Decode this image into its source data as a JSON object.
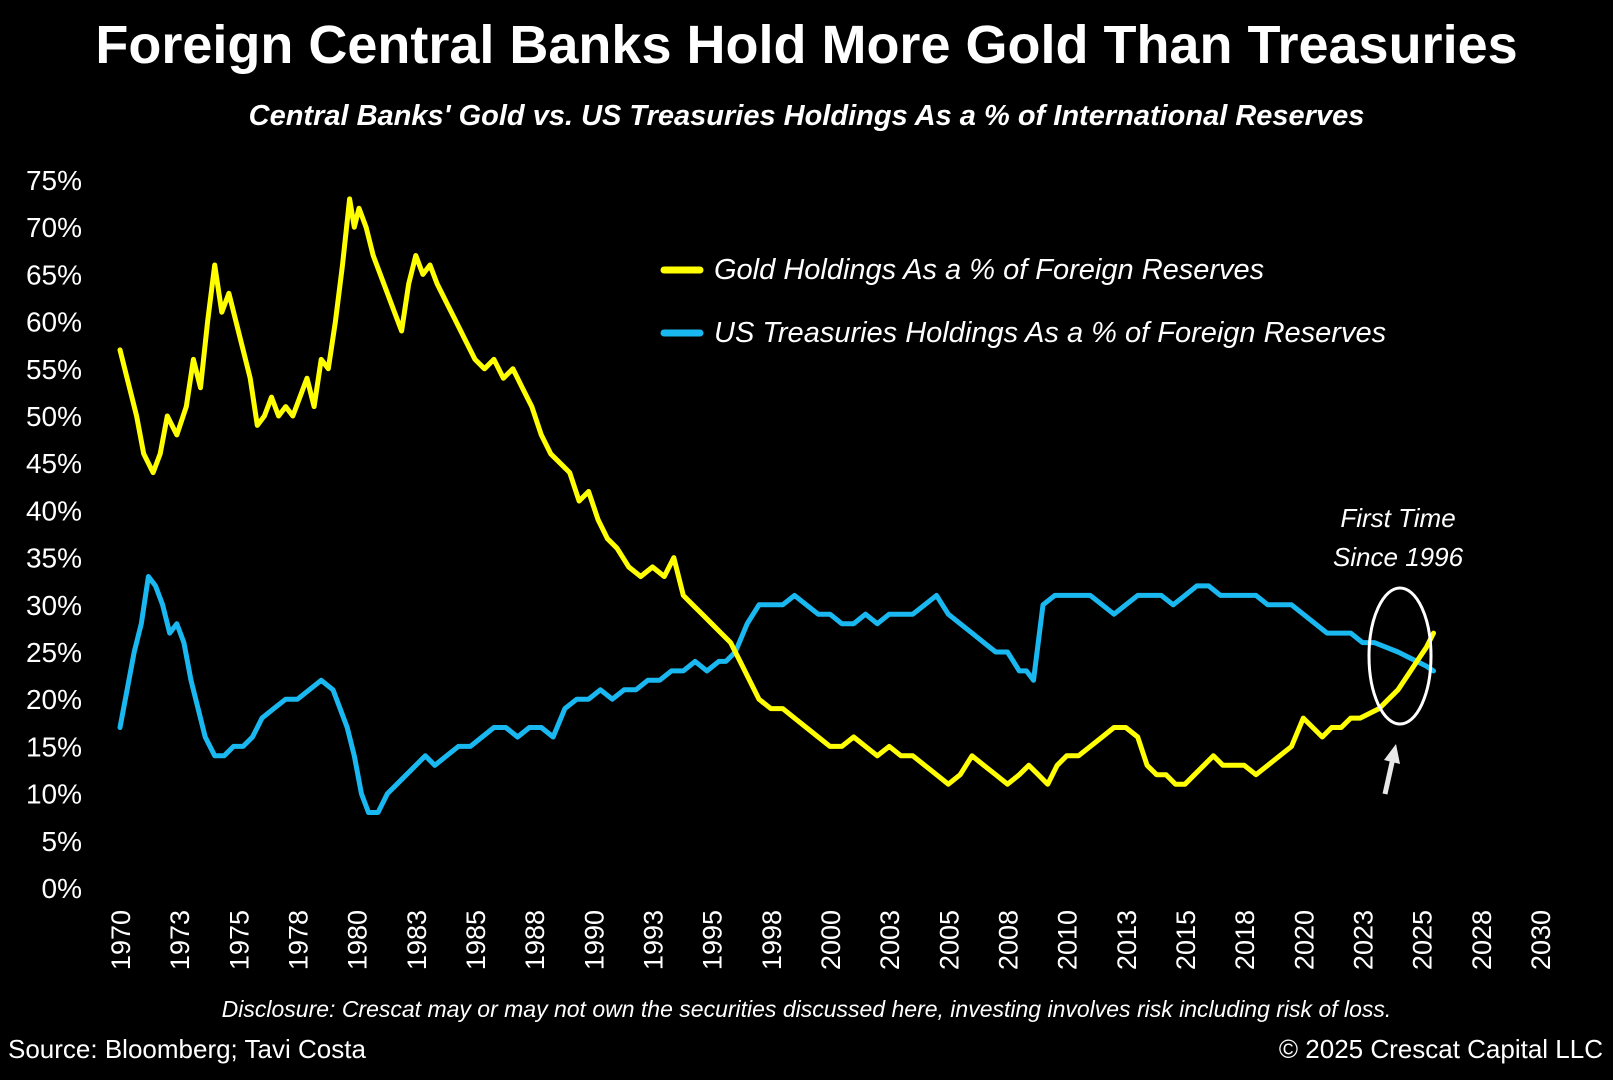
{
  "chart_data": {
    "type": "line",
    "title": "Foreign Central Banks Hold More Gold Than Treasuries",
    "subtitle": "Central Banks' Gold vs. US Treasuries Holdings As a % of International Reserves",
    "y_ticks": [
      "0%",
      "5%",
      "10%",
      "15%",
      "20%",
      "25%",
      "30%",
      "35%",
      "40%",
      "45%",
      "50%",
      "55%",
      "60%",
      "65%",
      "70%",
      "75%"
    ],
    "x_ticks": [
      "1970",
      "1973",
      "1975",
      "1978",
      "1980",
      "1983",
      "1985",
      "1988",
      "1990",
      "1993",
      "1995",
      "1998",
      "2000",
      "2003",
      "2005",
      "2008",
      "2010",
      "2013",
      "2015",
      "2018",
      "2020",
      "2023",
      "2025",
      "2028",
      "2030"
    ],
    "xlim": [
      1970,
      2030
    ],
    "ylim": [
      0,
      75
    ],
    "legend_position": "top-right",
    "series": [
      {
        "name": "Gold Holdings As a % of Foreign Reserves",
        "color": "#ffff00",
        "x": [
          1970.0,
          1970.3,
          1970.7,
          1971.0,
          1971.4,
          1971.7,
          1972.0,
          1972.4,
          1972.8,
          1973.1,
          1973.4,
          1973.7,
          1974.0,
          1974.3,
          1974.6,
          1974.9,
          1975.2,
          1975.5,
          1975.8,
          1976.1,
          1976.4,
          1976.7,
          1977.0,
          1977.3,
          1977.6,
          1977.9,
          1978.2,
          1978.5,
          1978.8,
          1979.1,
          1979.4,
          1979.7,
          1979.9,
          1980.1,
          1980.4,
          1980.7,
          1981.0,
          1981.3,
          1981.6,
          1981.9,
          1982.2,
          1982.5,
          1982.8,
          1983.1,
          1983.4,
          1983.8,
          1984.2,
          1984.6,
          1985.0,
          1985.4,
          1985.8,
          1986.2,
          1986.6,
          1987.0,
          1987.4,
          1987.8,
          1988.2,
          1988.6,
          1989.0,
          1989.4,
          1989.8,
          1990.2,
          1990.6,
          1991.0,
          1991.5,
          1992.0,
          1992.5,
          1993.0,
          1993.4,
          1993.8,
          1994.2,
          1994.6,
          1995.0,
          1995.4,
          1995.8,
          1996.2,
          1996.6,
          1997.0,
          1997.5,
          1998.0,
          1998.5,
          1999.0,
          1999.5,
          2000.0,
          2000.5,
          2001.0,
          2001.5,
          2002.0,
          2002.5,
          2003.0,
          2003.5,
          2004.0,
          2004.5,
          2005.0,
          2005.5,
          2006.0,
          2006.5,
          2007.0,
          2007.5,
          2008.0,
          2008.4,
          2008.8,
          2009.2,
          2009.6,
          2010.0,
          2010.5,
          2011.0,
          2011.5,
          2012.0,
          2012.5,
          2013.0,
          2013.4,
          2013.8,
          2014.2,
          2014.6,
          2015.0,
          2015.4,
          2015.8,
          2016.2,
          2016.6,
          2017.0,
          2017.5,
          2018.0,
          2018.5,
          2019.0,
          2019.5,
          2020.0,
          2020.4,
          2020.8,
          2021.2,
          2021.6,
          2022.0,
          2022.4,
          2022.8,
          2023.2,
          2023.6,
          2024.0,
          2024.4,
          2024.8,
          2025.2,
          2025.5
        ],
        "y": [
          57,
          54,
          50,
          46,
          44,
          46,
          50,
          48,
          51,
          56,
          53,
          60,
          66,
          61,
          63,
          60,
          57,
          54,
          49,
          50,
          52,
          50,
          51,
          50,
          52,
          54,
          51,
          56,
          55,
          60,
          66,
          73,
          70,
          72,
          70,
          67,
          65,
          63,
          61,
          59,
          64,
          67,
          65,
          66,
          64,
          62,
          60,
          58,
          56,
          55,
          56,
          54,
          55,
          53,
          51,
          48,
          46,
          45,
          44,
          41,
          42,
          39,
          37,
          36,
          34,
          33,
          34,
          33,
          35,
          31,
          30,
          29,
          28,
          27,
          26,
          24,
          22,
          20,
          19,
          19,
          18,
          17,
          16,
          15,
          15,
          16,
          15,
          14,
          15,
          14,
          14,
          13,
          12,
          11,
          12,
          14,
          13,
          12,
          11,
          12,
          13,
          12,
          11,
          13,
          14,
          14,
          15,
          16,
          17,
          17,
          16,
          13,
          12,
          12,
          11,
          11,
          12,
          13,
          14,
          13,
          13,
          13,
          12,
          13,
          14,
          15,
          18,
          17,
          16,
          17,
          17,
          18,
          18,
          18.5,
          19,
          20,
          21,
          22.5,
          24,
          25.5,
          27
        ]
      },
      {
        "name": "US Treasuries Holdings As a % of Foreign Reserves",
        "color": "#1ab8f0",
        "x": [
          1970.0,
          1970.3,
          1970.6,
          1970.9,
          1971.2,
          1971.5,
          1971.8,
          1972.1,
          1972.4,
          1972.7,
          1973.0,
          1973.3,
          1973.6,
          1974.0,
          1974.4,
          1974.8,
          1975.2,
          1975.6,
          1976.0,
          1976.5,
          1977.0,
          1977.5,
          1978.0,
          1978.5,
          1979.0,
          1979.3,
          1979.6,
          1979.9,
          1980.2,
          1980.5,
          1980.9,
          1981.3,
          1981.7,
          1982.1,
          1982.5,
          1982.9,
          1983.3,
          1983.8,
          1984.3,
          1984.8,
          1985.3,
          1985.8,
          1986.3,
          1986.8,
          1987.3,
          1987.8,
          1988.3,
          1988.8,
          1989.3,
          1989.8,
          1990.3,
          1990.8,
          1991.3,
          1991.8,
          1992.3,
          1992.8,
          1993.3,
          1993.8,
          1994.3,
          1994.8,
          1995.3,
          1995.6,
          1996.0,
          1996.5,
          1997.0,
          1997.5,
          1998.0,
          1998.5,
          1999.0,
          1999.5,
          2000.0,
          2000.5,
          2001.0,
          2001.5,
          2002.0,
          2002.5,
          2003.0,
          2003.5,
          2004.0,
          2004.5,
          2005.0,
          2005.5,
          2006.0,
          2006.5,
          2007.0,
          2007.5,
          2008.0,
          2008.3,
          2008.6,
          2009.0,
          2009.5,
          2010.0,
          2010.5,
          2011.0,
          2011.5,
          2012.0,
          2012.5,
          2013.0,
          2013.5,
          2014.0,
          2014.5,
          2015.0,
          2015.5,
          2016.0,
          2016.5,
          2017.0,
          2017.5,
          2018.0,
          2018.5,
          2019.0,
          2019.5,
          2020.0,
          2020.5,
          2021.0,
          2021.5,
          2022.0,
          2022.5,
          2023.0,
          2023.5,
          2024.0,
          2024.4,
          2024.8,
          2025.2,
          2025.5
        ],
        "y": [
          17,
          21,
          25,
          28,
          33,
          32,
          30,
          27,
          28,
          26,
          22,
          19,
          16,
          14,
          14,
          15,
          15,
          16,
          18,
          19,
          20,
          20,
          21,
          22,
          21,
          19,
          17,
          14,
          10,
          8,
          8,
          10,
          11,
          12,
          13,
          14,
          13,
          14,
          15,
          15,
          16,
          17,
          17,
          16,
          17,
          17,
          16,
          19,
          20,
          20,
          21,
          20,
          21,
          21,
          22,
          22,
          23,
          23,
          24,
          23,
          24,
          24,
          25,
          28,
          30,
          30,
          30,
          31,
          30,
          29,
          29,
          28,
          28,
          29,
          28,
          29,
          29,
          29,
          30,
          31,
          29,
          28,
          27,
          26,
          25,
          25,
          23,
          23,
          22,
          30,
          31,
          31,
          31,
          31,
          30,
          29,
          30,
          31,
          31,
          31,
          30,
          31,
          32,
          32,
          31,
          31,
          31,
          31,
          30,
          30,
          30,
          29,
          28,
          27,
          27,
          27,
          26,
          26,
          25.5,
          25,
          24.5,
          24,
          23.5,
          23
        ]
      }
    ],
    "annotation": {
      "line1": "First Time",
      "line2": "Since 1996"
    }
  },
  "footer": {
    "disclosure": "Disclosure: Crescat may or may not own the securities discussed here, investing involves risk including risk of loss.",
    "source": "Source: Bloomberg; Tavi Costa",
    "copyright": "© 2025 Crescat Capital LLC"
  }
}
